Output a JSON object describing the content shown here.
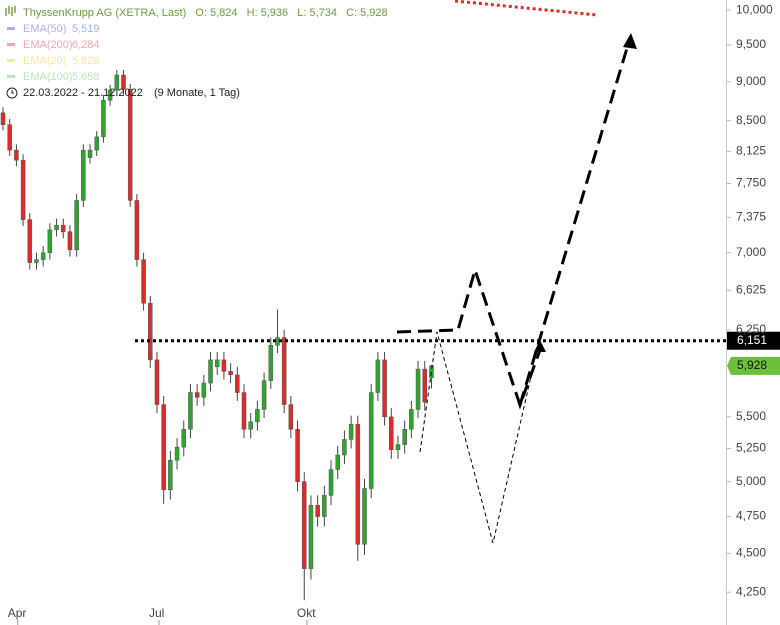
{
  "chart_data": {
    "type": "candlestick",
    "header": {
      "title": "ThyssenKrupp AG (XETRA, Last)",
      "ohlc": [
        "O: 5,824",
        "H: 5,936",
        "L: 5,734",
        "C: 5,928"
      ],
      "indicators": [
        {
          "name": "EMA(50)",
          "value": "5,519",
          "color": "#a9b3ea"
        },
        {
          "name": "EMA(200)",
          "value": "6,284",
          "color": "#f2a9a9"
        },
        {
          "name": "EMA(20)",
          "value": "5,826",
          "color": "#f4e7a4"
        },
        {
          "name": "EMA(100)",
          "value": "5,658",
          "color": "#b9e6b9"
        }
      ],
      "period": "22.03.2022 - 21.12.2022",
      "period_note": "(9 Monate, 1 Tag)"
    },
    "open": [
      8.6,
      8.45,
      8.14,
      8.02,
      7.35,
      6.9,
      6.93,
      7.0,
      7.24,
      7.29,
      7.22,
      7.03,
      7.56,
      8.05,
      8.14,
      8.3,
      8.76,
      8.89,
      9.09,
      8.9,
      7.56,
      6.93,
      6.5,
      5.98,
      5.6,
      4.94,
      5.16,
      5.26,
      5.4,
      5.7,
      5.66,
      5.78,
      5.92,
      5.98,
      5.88,
      5.85,
      5.7,
      5.4,
      5.46,
      5.56,
      5.8,
      6.11,
      6.18,
      5.6,
      5.4,
      5.0,
      4.4,
      4.83,
      4.75,
      4.9,
      5.09,
      5.2,
      5.32,
      5.44,
      4.56,
      4.95,
      5.7,
      5.98,
      5.5,
      5.24,
      5.28,
      5.4,
      5.56,
      5.9,
      5.824
    ],
    "high": [
      8.67,
      8.52,
      8.21,
      8.09,
      7.42,
      7.0,
      7.07,
      7.31,
      7.36,
      7.36,
      7.29,
      7.63,
      8.21,
      8.21,
      8.37,
      8.83,
      8.96,
      9.16,
      9.16,
      8.97,
      7.63,
      7.0,
      6.57,
      6.05,
      5.67,
      5.23,
      5.33,
      5.47,
      5.77,
      5.77,
      5.85,
      6.05,
      6.05,
      6.05,
      5.95,
      5.92,
      5.77,
      5.53,
      5.63,
      5.87,
      6.18,
      6.44,
      6.25,
      5.67,
      5.47,
      5.07,
      4.9,
      4.9,
      4.97,
      5.16,
      5.27,
      5.39,
      5.51,
      5.51,
      5.02,
      5.77,
      6.05,
      6.05,
      5.57,
      5.35,
      5.47,
      5.63,
      5.97,
      5.97,
      5.936
    ],
    "low": [
      8.38,
      8.07,
      7.95,
      7.28,
      6.83,
      6.83,
      6.86,
      6.93,
      7.17,
      7.15,
      6.96,
      6.96,
      7.49,
      7.98,
      8.07,
      8.23,
      8.69,
      8.82,
      8.83,
      7.49,
      6.86,
      6.43,
      5.91,
      5.53,
      4.84,
      4.87,
      5.09,
      5.19,
      5.33,
      5.59,
      5.59,
      5.71,
      5.85,
      5.81,
      5.78,
      5.63,
      5.33,
      5.33,
      5.39,
      5.49,
      5.73,
      6.04,
      5.53,
      5.33,
      4.93,
      4.2,
      4.33,
      4.68,
      4.68,
      4.83,
      5.02,
      5.13,
      5.25,
      4.45,
      4.49,
      4.88,
      5.63,
      5.43,
      5.17,
      5.17,
      5.21,
      5.33,
      5.49,
      5.55,
      5.734
    ],
    "close": [
      8.45,
      8.14,
      8.02,
      7.35,
      6.9,
      6.93,
      7.0,
      7.24,
      7.29,
      7.22,
      7.03,
      7.56,
      8.14,
      8.14,
      8.3,
      8.76,
      8.89,
      9.09,
      8.9,
      7.56,
      6.93,
      6.5,
      5.98,
      5.6,
      4.94,
      5.16,
      5.26,
      5.4,
      5.7,
      5.66,
      5.78,
      5.98,
      5.98,
      5.88,
      5.85,
      5.7,
      5.4,
      5.46,
      5.56,
      5.8,
      6.11,
      6.18,
      5.6,
      5.4,
      5.0,
      4.4,
      4.83,
      4.75,
      4.9,
      5.09,
      5.2,
      5.32,
      5.44,
      4.56,
      4.95,
      5.7,
      5.98,
      5.5,
      5.24,
      5.28,
      5.4,
      5.56,
      5.9,
      5.62,
      5.928
    ],
    "up_color": "#2fa52f",
    "down_color": "#dd2b2b",
    "xlim": [
      0,
      108
    ],
    "xticks": [
      {
        "value": 2.2,
        "label": "Apr"
      },
      {
        "value": 23.3,
        "label": "Jul"
      },
      {
        "value": 45.4,
        "label": "Okt"
      }
    ],
    "ylim": [
      4.05,
      10.15
    ],
    "log_scale": true,
    "yticks": [
      {
        "value": 4.25,
        "label": "4,250"
      },
      {
        "value": 4.5,
        "label": "4,500"
      },
      {
        "value": 4.75,
        "label": "4,750"
      },
      {
        "value": 5,
        "label": "5,000"
      },
      {
        "value": 5.25,
        "label": "5,250"
      },
      {
        "value": 5.5,
        "label": "5,500"
      },
      {
        "value": 6.25,
        "label": "6,250"
      },
      {
        "value": 6.625,
        "label": "6,625"
      },
      {
        "value": 7,
        "label": "7,000"
      },
      {
        "value": 7.375,
        "label": "7,375"
      },
      {
        "value": 7.75,
        "label": "7,750"
      },
      {
        "value": 8.125,
        "label": "8,125"
      },
      {
        "value": 8.5,
        "label": "8,500"
      },
      {
        "value": 9,
        "label": "9,000"
      },
      {
        "value": 9.5,
        "label": "9,500"
      },
      {
        "value": 10,
        "label": "10,000"
      }
    ],
    "hline": {
      "value": 6.151,
      "label": "6,151",
      "color": "#000000"
    },
    "last_price": {
      "value": 5.928,
      "label": "5,928",
      "color": "#6cc13a"
    }
  }
}
